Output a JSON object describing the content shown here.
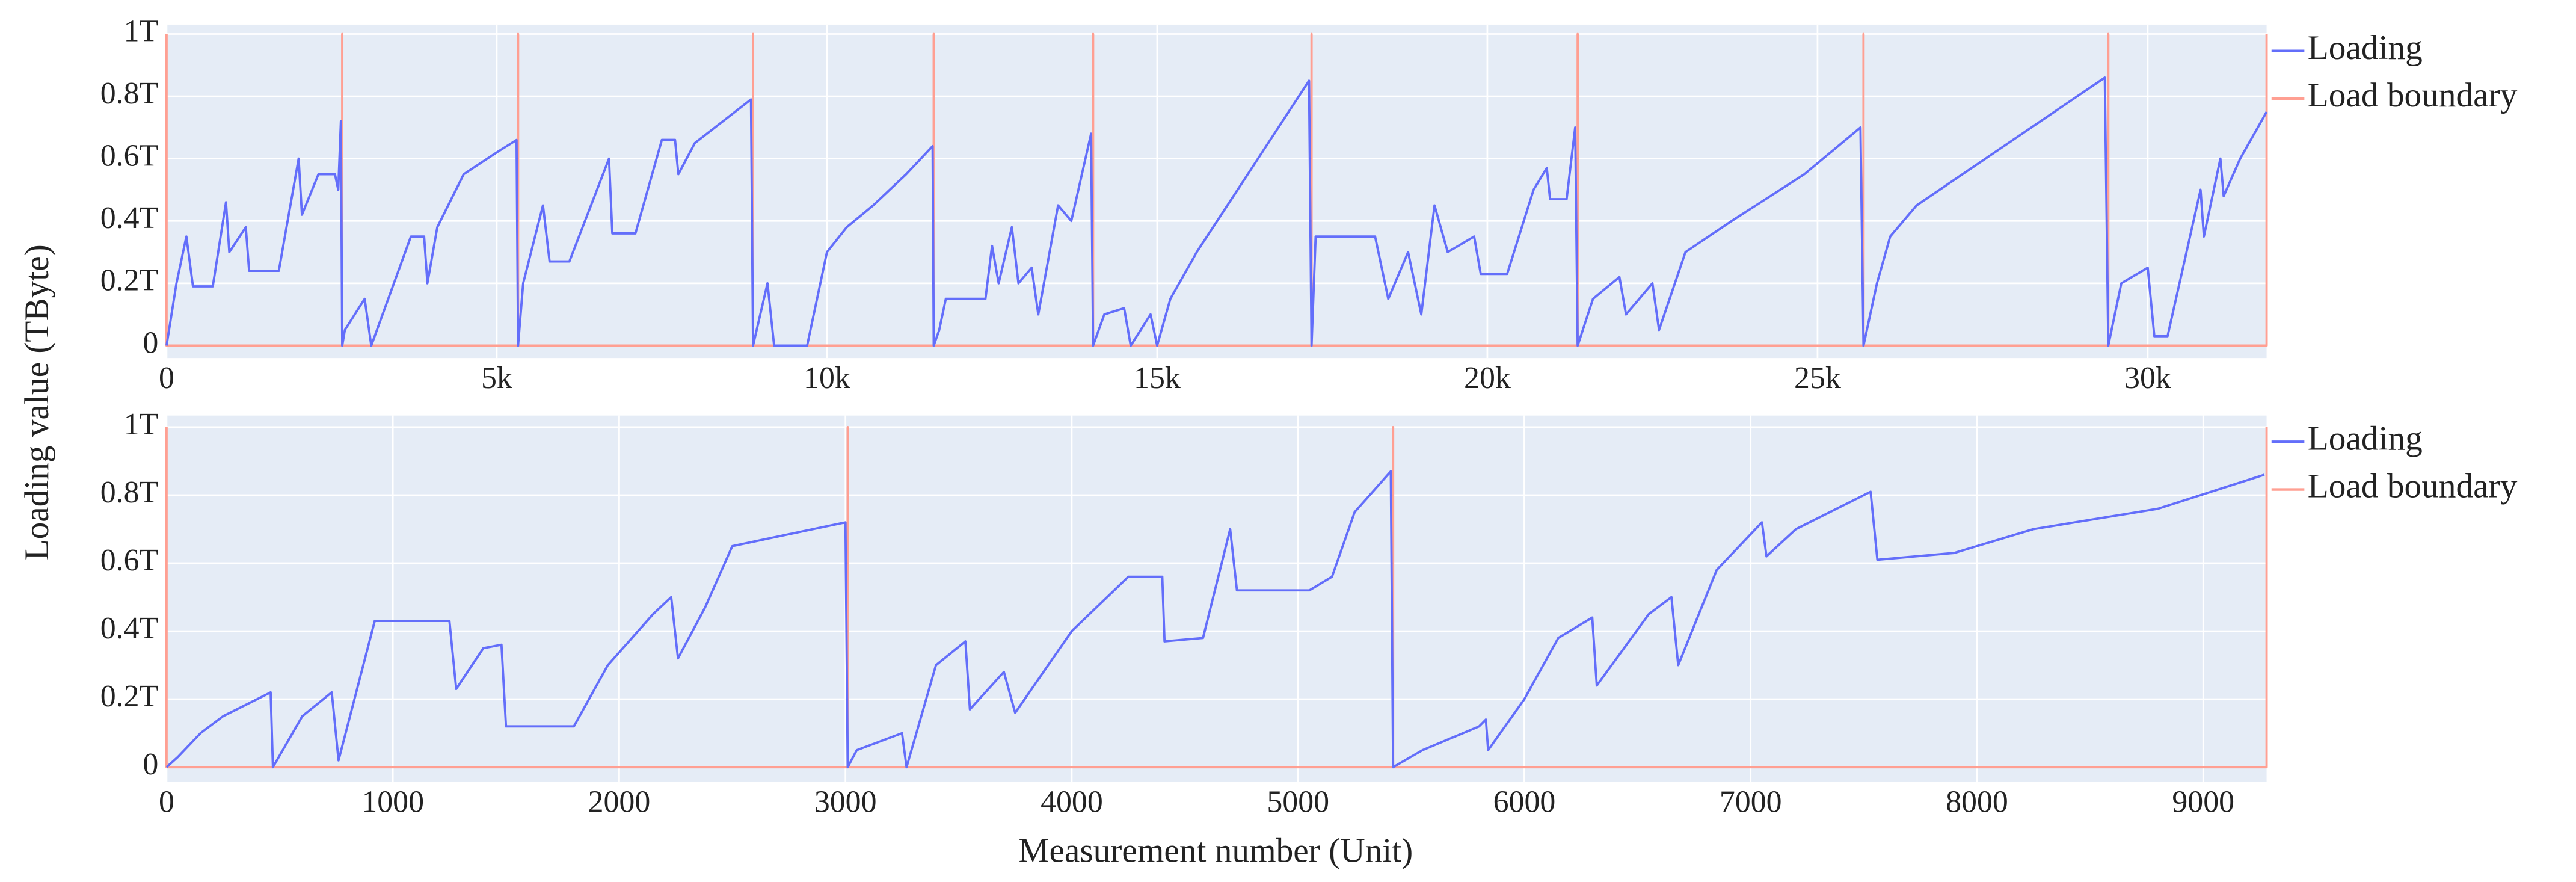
{
  "chart_data": [
    {
      "type": "line",
      "ylabel": "Loading value (TByte)",
      "xlim": [
        0,
        31800
      ],
      "ylim": [
        -0.04,
        1.03
      ],
      "xticks": [
        0,
        {
          "value": 5000,
          "label": "5k"
        },
        {
          "value": 10000,
          "label": "10k"
        },
        {
          "value": 15000,
          "label": "15k"
        },
        {
          "value": 20000,
          "label": "20k"
        },
        {
          "value": 25000,
          "label": "25k"
        },
        {
          "value": 30000,
          "label": "30k"
        }
      ],
      "yticks": [
        0,
        {
          "value": 0.2,
          "label": "0.2T"
        },
        {
          "value": 0.4,
          "label": "0.4T"
        },
        {
          "value": 0.6,
          "label": "0.6T"
        },
        {
          "value": 0.8,
          "label": "0.8T"
        },
        {
          "value": 1,
          "label": "1T"
        }
      ],
      "grid": true,
      "legend": "right",
      "series": [
        {
          "name": "Loading",
          "color": "#636efa",
          "x": [
            0,
            150,
            300,
            400,
            700,
            900,
            950,
            1200,
            1250,
            1700,
            2000,
            2050,
            2300,
            2550,
            2600,
            2640,
            2660,
            2700,
            3000,
            3100,
            3700,
            3900,
            3950,
            4100,
            4500,
            5000,
            5300,
            5323,
            5400,
            5700,
            5800,
            6100,
            6700,
            6750,
            7100,
            7500,
            7700,
            7750,
            8000,
            8850,
            8881,
            9100,
            9200,
            9700,
            10000,
            10300,
            10700,
            11200,
            11600,
            11617,
            11700,
            11800,
            12400,
            12500,
            12600,
            12800,
            12900,
            13100,
            13200,
            13500,
            13700,
            14000,
            14030,
            14200,
            14500,
            14600,
            14900,
            15000,
            15200,
            15600,
            17300,
            17338,
            17400,
            18300,
            18500,
            18800,
            19000,
            19200,
            19400,
            19800,
            19900,
            20300,
            20700,
            20900,
            20950,
            21200,
            21330,
            21368,
            21600,
            22000,
            22100,
            22500,
            22600,
            23000,
            23700,
            24800,
            25650,
            25696,
            25900,
            26100,
            26500,
            29350,
            29403,
            29600,
            30000,
            30100,
            30300,
            30800,
            30850,
            31100,
            31150,
            31400,
            31800
          ],
          "values": [
            0,
            0.2,
            0.35,
            0.19,
            0.19,
            0.46,
            0.3,
            0.38,
            0.24,
            0.24,
            0.6,
            0.42,
            0.55,
            0.55,
            0.5,
            0.72,
            0,
            0.05,
            0.15,
            0,
            0.35,
            0.35,
            0.2,
            0.38,
            0.55,
            0.62,
            0.66,
            0,
            0.2,
            0.45,
            0.27,
            0.27,
            0.6,
            0.36,
            0.36,
            0.66,
            0.66,
            0.55,
            0.65,
            0.79,
            0,
            0.2,
            0,
            0,
            0.3,
            0.38,
            0.45,
            0.55,
            0.64,
            0,
            0.05,
            0.15,
            0.15,
            0.32,
            0.2,
            0.38,
            0.2,
            0.25,
            0.1,
            0.45,
            0.4,
            0.68,
            0,
            0.1,
            0.12,
            0,
            0.1,
            0,
            0.15,
            0.3,
            0.85,
            0,
            0.35,
            0.35,
            0.15,
            0.3,
            0.1,
            0.45,
            0.3,
            0.35,
            0.23,
            0.23,
            0.5,
            0.57,
            0.47,
            0.47,
            0.7,
            0,
            0.15,
            0.22,
            0.1,
            0.2,
            0.05,
            0.3,
            0.4,
            0.55,
            0.7,
            0,
            0.2,
            0.35,
            0.45,
            0.86,
            0,
            0.2,
            0.25,
            0.03,
            0.03,
            0.5,
            0.35,
            0.6,
            0.48,
            0.6,
            0.75
          ]
        },
        {
          "name": "Load boundary",
          "color": "#ff9f92",
          "x": [
            0,
            0,
            2660,
            2660,
            2660,
            5323,
            5323,
            5323,
            8881,
            8881,
            8881,
            11617,
            11617,
            11617,
            14030,
            14030,
            14030,
            17338,
            17338,
            17338,
            21368,
            21368,
            21368,
            25696,
            25696,
            25696,
            29403,
            29403,
            29403,
            31800,
            31800
          ],
          "values": [
            1,
            0,
            0,
            1,
            0,
            0,
            1,
            0,
            0,
            1,
            0,
            0,
            1,
            0,
            0,
            1,
            0,
            0,
            1,
            0,
            0,
            1,
            0,
            0,
            1,
            0,
            0,
            1,
            0,
            0,
            1
          ]
        }
      ]
    },
    {
      "type": "line",
      "xlabel": "Measurement number (Unit)",
      "xlim": [
        0,
        9280
      ],
      "ylim": [
        -0.043,
        1.034
      ],
      "xticks": [
        0,
        1000,
        2000,
        3000,
        4000,
        5000,
        6000,
        7000,
        8000,
        9000
      ],
      "yticks": [
        0,
        {
          "value": 0.2,
          "label": "0.2T"
        },
        {
          "value": 0.4,
          "label": "0.4T"
        },
        {
          "value": 0.6,
          "label": "0.6T"
        },
        {
          "value": 0.8,
          "label": "0.8T"
        },
        {
          "value": 1,
          "label": "1T"
        }
      ],
      "grid": true,
      "legend": "right",
      "series": [
        {
          "name": "Loading",
          "color": "#636efa",
          "x": [
            0,
            50,
            150,
            250,
            460,
            470,
            600,
            730,
            760,
            920,
            1250,
            1280,
            1400,
            1480,
            1500,
            1800,
            1950,
            2150,
            2230,
            2260,
            2380,
            2500,
            3000,
            3010,
            3050,
            3250,
            3270,
            3400,
            3530,
            3550,
            3700,
            3750,
            4000,
            4250,
            4400,
            4410,
            4580,
            4700,
            4730,
            5050,
            5150,
            5250,
            5410,
            5420,
            5550,
            5800,
            5830,
            5840,
            6000,
            6150,
            6300,
            6320,
            6550,
            6650,
            6680,
            6850,
            7050,
            7070,
            7200,
            7530,
            7560,
            7900,
            8250,
            8800,
            9270
          ],
          "values": [
            0,
            0.03,
            0.1,
            0.15,
            0.22,
            0,
            0.15,
            0.22,
            0.02,
            0.43,
            0.43,
            0.23,
            0.35,
            0.36,
            0.12,
            0.12,
            0.3,
            0.45,
            0.5,
            0.32,
            0.47,
            0.65,
            0.72,
            0,
            0.05,
            0.1,
            0,
            0.3,
            0.37,
            0.17,
            0.28,
            0.16,
            0.4,
            0.56,
            0.56,
            0.37,
            0.38,
            0.7,
            0.52,
            0.52,
            0.56,
            0.75,
            0.87,
            0,
            0.05,
            0.12,
            0.14,
            0.05,
            0.2,
            0.38,
            0.44,
            0.24,
            0.45,
            0.5,
            0.3,
            0.58,
            0.72,
            0.62,
            0.7,
            0.81,
            0.61,
            0.63,
            0.7,
            0.76,
            0.86
          ]
        },
        {
          "name": "Load boundary",
          "color": "#ff9f92",
          "x": [
            0,
            0,
            3010,
            3010,
            3010,
            5420,
            5420,
            5420,
            9280,
            9280
          ],
          "values": [
            1,
            0,
            0,
            1,
            0,
            0,
            1,
            0,
            0,
            1
          ]
        }
      ]
    }
  ]
}
